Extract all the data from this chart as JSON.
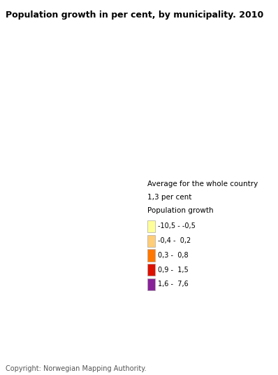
{
  "title": "Population growth in per cent, by municipality. 2010",
  "copyright": "Copyright: Norwegian Mapping Authority.",
  "legend_header1": "Average for the whole country",
  "legend_header2": "1,3 per cent",
  "legend_header3": "Population growth",
  "legend_labels": [
    "-10,5 - -0,5",
    "-0,4 -  0,2",
    "0,3 -  0,8",
    "0,9 -  1,5",
    "1,6 -  7,6"
  ],
  "legend_colors": [
    "#FFFF99",
    "#FFCC77",
    "#FF7700",
    "#DD1100",
    "#882299"
  ],
  "legend_colors_display": [
    "#FFFF99",
    "#FFCC77",
    "#FF7700",
    "#DD1100",
    "#882299"
  ],
  "background_color": "#FFFFFF",
  "title_fontsize": 9,
  "legend_fontsize": 7.5,
  "copyright_fontsize": 7,
  "map_lon_min": 4.0,
  "map_lon_max": 31.5,
  "map_lat_min": 57.5,
  "map_lat_max": 71.5
}
